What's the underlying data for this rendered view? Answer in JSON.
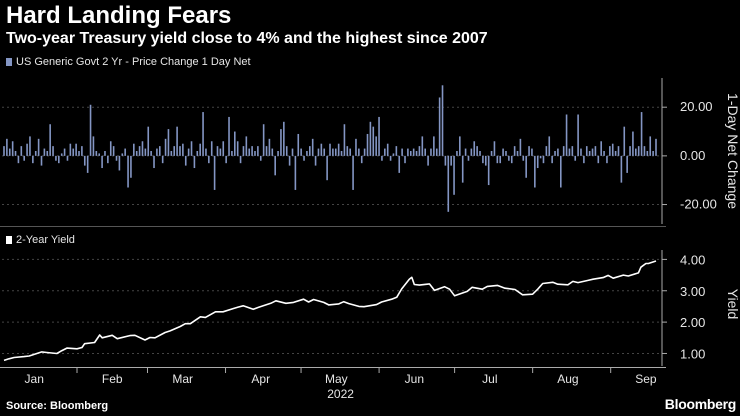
{
  "header": {
    "title": "Hard Landing Fears",
    "subtitle": "Two-year Treasury yield close to 4% and the highest since 2007"
  },
  "footer": {
    "source": "Source: Bloomberg",
    "brand": "Bloomberg"
  },
  "colors": {
    "background": "#000000",
    "bars": "#8496c4",
    "line": "#ffffff",
    "grid": "#444444"
  },
  "chart_data": [
    {
      "type": "bar",
      "legend": "US Generic Govt 2 Yr - Price Change 1 Day Net",
      "ylabel": "1-Day Net Change",
      "yticks": [
        "20.00",
        "0.00",
        "-20.00"
      ],
      "ylim": [
        -28,
        32
      ],
      "grid": true,
      "values": [
        4,
        7,
        3,
        6,
        2,
        -3,
        4,
        -2,
        5,
        8,
        -3,
        2,
        7,
        -4,
        3,
        2,
        13,
        4,
        -2,
        -3,
        1,
        3,
        -2,
        5,
        3,
        5,
        2,
        4,
        -4,
        -7,
        21,
        8,
        2,
        1,
        -5,
        2,
        -3,
        6,
        4,
        -2,
        -6,
        1,
        3,
        -13,
        -9,
        5,
        2,
        4,
        6,
        3,
        12,
        2,
        -5,
        3,
        4,
        -3,
        7,
        11,
        2,
        4,
        12,
        4,
        5,
        -4,
        3,
        6,
        -5,
        2,
        5,
        18,
        3,
        -3,
        6,
        -14,
        4,
        3,
        6,
        -3,
        16,
        2,
        10,
        6,
        -3,
        4,
        8,
        3,
        4,
        2,
        4,
        -2,
        13,
        4,
        7,
        3,
        -8,
        2,
        11,
        14,
        4,
        -4,
        3,
        -14,
        9,
        3,
        -2,
        2,
        4,
        7,
        -4,
        3,
        5,
        3,
        -10,
        5,
        3,
        3,
        5,
        2,
        13,
        4,
        3,
        -14,
        7,
        3,
        -3,
        3,
        9,
        14,
        12,
        8,
        16,
        -2,
        3,
        5,
        -2,
        1,
        4,
        -7,
        3,
        -3,
        3,
        2,
        3,
        2,
        4,
        8,
        3,
        -4,
        3,
        8,
        3,
        24,
        29,
        -4,
        -23,
        -4,
        -16,
        2,
        8,
        -11,
        3,
        -2,
        3,
        6,
        4,
        2,
        -3,
        -4,
        -12,
        2,
        6,
        -3,
        -3,
        3,
        2,
        -2,
        -3,
        4,
        2,
        7,
        -2,
        -9,
        4,
        3,
        -13,
        -5,
        -1,
        -3,
        4,
        8,
        -3,
        2,
        3,
        -13,
        4,
        17,
        3,
        4,
        -2,
        17,
        3,
        -3,
        4,
        2,
        3,
        4,
        -3,
        6,
        2,
        -3,
        4,
        5,
        2,
        4,
        -11,
        12,
        -7,
        4,
        10,
        3,
        4,
        18,
        4,
        2,
        8,
        2,
        7
      ]
    },
    {
      "type": "line",
      "legend": "2-Year Yield",
      "ylabel": "Yield",
      "yticks": [
        "4.00",
        "3.00",
        "2.00",
        "1.00"
      ],
      "ylim": [
        0.6,
        4.3
      ],
      "grid": true,
      "x_categories": [
        "Jan",
        "Feb",
        "Mar",
        "Apr",
        "May",
        "Jun",
        "Jul",
        "Aug",
        "Sep"
      ],
      "x_year": "2022",
      "points": [
        [
          "Jan 3",
          0.78
        ],
        [
          "Jan 5",
          0.83
        ],
        [
          "Jan 7",
          0.87
        ],
        [
          "Jan 11",
          0.9
        ],
        [
          "Jan 13",
          0.92
        ],
        [
          "Jan 18",
          1.05
        ],
        [
          "Jan 20",
          1.03
        ],
        [
          "Jan 24",
          1.0
        ],
        [
          "Jan 26",
          1.09
        ],
        [
          "Jan 28",
          1.17
        ],
        [
          "Feb 1",
          1.15
        ],
        [
          "Feb 3",
          1.19
        ],
        [
          "Feb 4",
          1.31
        ],
        [
          "Feb 8",
          1.35
        ],
        [
          "Feb 10",
          1.59
        ],
        [
          "Feb 11",
          1.5
        ],
        [
          "Feb 15",
          1.58
        ],
        [
          "Feb 17",
          1.47
        ],
        [
          "Feb 22",
          1.57
        ],
        [
          "Feb 24",
          1.58
        ],
        [
          "Feb 28",
          1.43
        ],
        [
          "Mar 2",
          1.51
        ],
        [
          "Mar 4",
          1.5
        ],
        [
          "Mar 8",
          1.67
        ],
        [
          "Mar 10",
          1.72
        ],
        [
          "Mar 14",
          1.86
        ],
        [
          "Mar 16",
          1.95
        ],
        [
          "Mar 18",
          1.95
        ],
        [
          "Mar 22",
          2.17
        ],
        [
          "Mar 24",
          2.15
        ],
        [
          "Mar 28",
          2.33
        ],
        [
          "Mar 31",
          2.33
        ],
        [
          "Apr 4",
          2.43
        ],
        [
          "Apr 6",
          2.48
        ],
        [
          "Apr 8",
          2.52
        ],
        [
          "Apr 12",
          2.41
        ],
        [
          "Apr 14",
          2.47
        ],
        [
          "Apr 19",
          2.6
        ],
        [
          "Apr 21",
          2.68
        ],
        [
          "Apr 25",
          2.6
        ],
        [
          "Apr 28",
          2.63
        ],
        [
          "May 2",
          2.73
        ],
        [
          "May 4",
          2.64
        ],
        [
          "May 6",
          2.72
        ],
        [
          "May 10",
          2.63
        ],
        [
          "May 12",
          2.55
        ],
        [
          "May 16",
          2.58
        ],
        [
          "May 18",
          2.65
        ],
        [
          "May 20",
          2.59
        ],
        [
          "May 24",
          2.5
        ],
        [
          "May 26",
          2.49
        ],
        [
          "May 31",
          2.56
        ],
        [
          "Jun 2",
          2.64
        ],
        [
          "Jun 6",
          2.73
        ],
        [
          "Jun 8",
          2.79
        ],
        [
          "Jun 10",
          3.06
        ],
        [
          "Jun 13",
          3.37
        ],
        [
          "Jun 14",
          3.43
        ],
        [
          "Jun 15",
          3.2
        ],
        [
          "Jun 17",
          3.18
        ],
        [
          "Jun 21",
          3.22
        ],
        [
          "Jun 23",
          3.01
        ],
        [
          "Jun 27",
          3.13
        ],
        [
          "Jun 29",
          3.05
        ],
        [
          "Jul 1",
          2.84
        ],
        [
          "Jul 6",
          2.98
        ],
        [
          "Jul 8",
          3.11
        ],
        [
          "Jul 12",
          3.05
        ],
        [
          "Jul 14",
          3.14
        ],
        [
          "Jul 18",
          3.17
        ],
        [
          "Jul 21",
          3.08
        ],
        [
          "Jul 25",
          3.04
        ],
        [
          "Jul 28",
          2.87
        ],
        [
          "Aug 1",
          2.89
        ],
        [
          "Aug 3",
          3.05
        ],
        [
          "Aug 5",
          3.23
        ],
        [
          "Aug 9",
          3.27
        ],
        [
          "Aug 11",
          3.21
        ],
        [
          "Aug 15",
          3.19
        ],
        [
          "Aug 17",
          3.3
        ],
        [
          "Aug 19",
          3.26
        ],
        [
          "Aug 23",
          3.33
        ],
        [
          "Aug 25",
          3.37
        ],
        [
          "Aug 29",
          3.42
        ],
        [
          "Aug 31",
          3.49
        ],
        [
          "Sep 2",
          3.4
        ],
        [
          "Sep 6",
          3.5
        ],
        [
          "Sep 8",
          3.47
        ],
        [
          "Sep 12",
          3.57
        ],
        [
          "Sep 13",
          3.75
        ],
        [
          "Sep 15",
          3.87
        ],
        [
          "Sep 16",
          3.87
        ],
        [
          "Sep 19",
          3.95
        ]
      ]
    }
  ]
}
